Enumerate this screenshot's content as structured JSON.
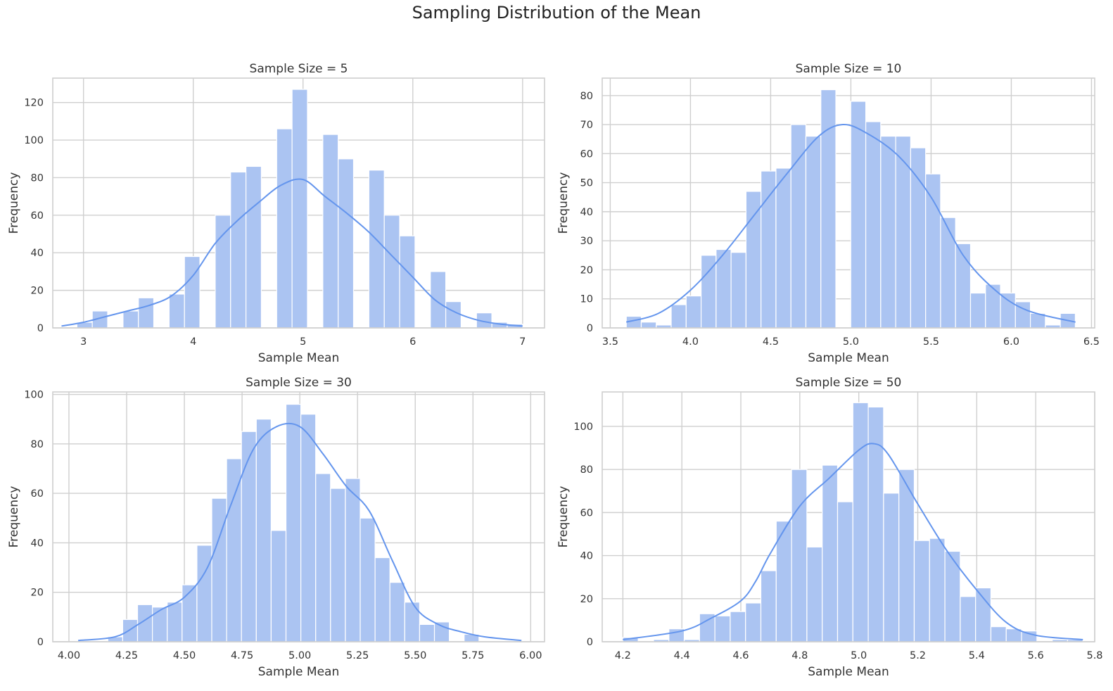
{
  "title": "Sampling Distribution of the Mean",
  "colors": {
    "bar": "#abc4f2",
    "line": "#6495ed",
    "grid": "#cfcfcf"
  },
  "chart_data": [
    {
      "type": "histogram",
      "title": "Sample Size = 5",
      "xlabel": "Sample Mean",
      "ylabel": "Frequency",
      "xlim": [
        2.72,
        7.2
      ],
      "ylim": [
        0,
        133
      ],
      "xticks": [
        3,
        4,
        5,
        6,
        7
      ],
      "xtick_labels": [
        "3",
        "4",
        "5",
        "6",
        "7"
      ],
      "yticks": [
        0,
        20,
        40,
        60,
        80,
        100,
        120
      ],
      "bin_start": 2.8,
      "bin_width": 0.14,
      "values": [
        0,
        3,
        9,
        0,
        9,
        16,
        0,
        18,
        38,
        0,
        60,
        83,
        86,
        0,
        106,
        127,
        0,
        103,
        90,
        0,
        84,
        60,
        49,
        0,
        30,
        14,
        0,
        8,
        3,
        2
      ],
      "kde": {
        "x": [
          2.8,
          3.0,
          3.2,
          3.4,
          3.6,
          3.8,
          4.0,
          4.2,
          4.4,
          4.6,
          4.8,
          5.0,
          5.2,
          5.4,
          5.6,
          5.8,
          6.0,
          6.2,
          6.4,
          6.6,
          6.8,
          7.0
        ],
        "y": [
          1,
          3,
          6,
          9,
          12,
          17,
          28,
          45,
          57,
          67,
          76,
          79,
          70,
          61,
          51,
          39,
          27,
          15,
          8,
          4,
          2,
          1
        ]
      }
    },
    {
      "type": "histogram",
      "title": "Sample Size = 10",
      "xlabel": "Sample Mean",
      "ylabel": "Frequency",
      "xlim": [
        3.45,
        6.52
      ],
      "ylim": [
        0,
        86
      ],
      "xticks": [
        3.5,
        4.0,
        4.5,
        5.0,
        5.5,
        6.0,
        6.5
      ],
      "xtick_labels": [
        "3.5",
        "4.0",
        "4.5",
        "5.0",
        "5.5",
        "6.0",
        "6.5"
      ],
      "yticks": [
        0,
        10,
        20,
        30,
        40,
        50,
        60,
        70,
        80
      ],
      "bin_start": 3.6,
      "bin_width": 0.0933,
      "values": [
        4,
        2,
        1,
        8,
        11,
        25,
        27,
        26,
        47,
        54,
        55,
        70,
        66,
        82,
        0,
        78,
        71,
        66,
        66,
        62,
        53,
        38,
        29,
        12,
        15,
        12,
        9,
        5,
        1,
        5
      ],
      "kde": {
        "x": [
          3.6,
          3.8,
          4.0,
          4.2,
          4.4,
          4.6,
          4.8,
          4.95,
          5.1,
          5.3,
          5.5,
          5.7,
          5.9,
          6.1,
          6.4
        ],
        "y": [
          2,
          5,
          13,
          25,
          39,
          53,
          66,
          70,
          67,
          59,
          45,
          25,
          13,
          6,
          2
        ]
      }
    },
    {
      "type": "histogram",
      "title": "Sample Size = 30",
      "xlabel": "Sample Mean",
      "ylabel": "Frequency",
      "xlim": [
        3.93,
        6.06
      ],
      "ylim": [
        0,
        101
      ],
      "xticks": [
        4.0,
        4.25,
        4.5,
        4.75,
        5.0,
        5.25,
        5.5,
        5.75,
        6.0
      ],
      "xtick_labels": [
        "4.00",
        "4.25",
        "4.50",
        "4.75",
        "5.00",
        "5.25",
        "5.50",
        "5.75",
        "6.00"
      ],
      "yticks": [
        0,
        20,
        40,
        60,
        80,
        100
      ],
      "bin_start": 4.04,
      "bin_width": 0.0643,
      "values": [
        0,
        0,
        2,
        9,
        15,
        14,
        16,
        23,
        39,
        58,
        74,
        85,
        90,
        45,
        96,
        92,
        68,
        62,
        66,
        50,
        34,
        24,
        16,
        7,
        8,
        0,
        3,
        0,
        0,
        0
      ],
      "kde": {
        "x": [
          4.04,
          4.2,
          4.3,
          4.4,
          4.5,
          4.6,
          4.7,
          4.8,
          4.9,
          5.0,
          5.1,
          5.2,
          5.3,
          5.4,
          5.5,
          5.6,
          5.7,
          5.8,
          5.96
        ],
        "y": [
          0.5,
          2,
          7,
          13,
          18,
          30,
          55,
          78,
          87,
          87,
          76,
          63,
          53,
          33,
          14,
          7,
          4,
          2,
          0.5
        ]
      }
    },
    {
      "type": "histogram",
      "title": "Sample Size = 50",
      "xlabel": "Sample Mean",
      "ylabel": "Frequency",
      "xlim": [
        4.13,
        5.8
      ],
      "ylim": [
        0,
        116
      ],
      "xticks": [
        4.2,
        4.4,
        4.6,
        4.8,
        5.0,
        5.2,
        5.4,
        5.6,
        5.8
      ],
      "xtick_labels": [
        "4.2",
        "4.4",
        "4.6",
        "4.8",
        "5.0",
        "5.2",
        "5.4",
        "5.6",
        "5.8"
      ],
      "yticks": [
        0,
        20,
        40,
        60,
        80,
        100
      ],
      "bin_start": 4.2,
      "bin_width": 0.052,
      "values": [
        2,
        0,
        1,
        6,
        1,
        13,
        12,
        14,
        18,
        33,
        56,
        80,
        44,
        82,
        65,
        111,
        109,
        69,
        80,
        47,
        48,
        42,
        21,
        25,
        7,
        6,
        5,
        0,
        1,
        1
      ],
      "kde": {
        "x": [
          4.2,
          4.4,
          4.5,
          4.6,
          4.65,
          4.7,
          4.8,
          4.9,
          5.0,
          5.05,
          5.1,
          5.2,
          5.3,
          5.4,
          5.5,
          5.6,
          5.76
        ],
        "y": [
          1,
          5,
          11,
          19,
          28,
          41,
          63,
          76,
          89,
          92,
          87,
          64,
          42,
          24,
          9,
          3,
          1
        ]
      }
    }
  ]
}
